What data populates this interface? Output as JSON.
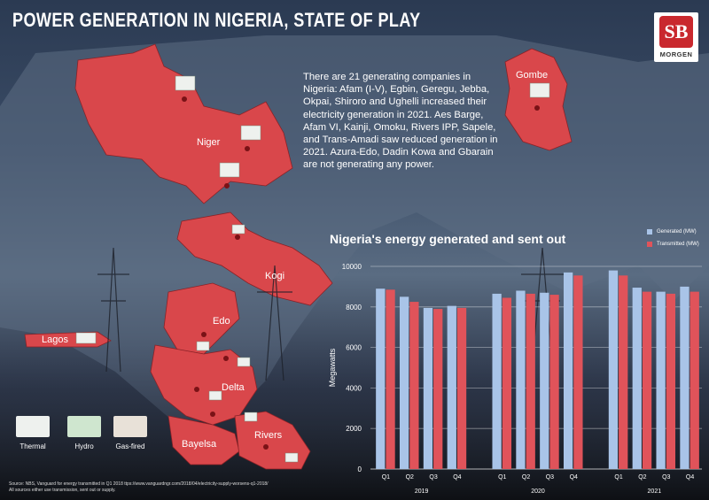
{
  "title": "POWER GENERATION IN NIGERIA, STATE OF PLAY",
  "logo": {
    "mark": "SB",
    "name": "MORGEN"
  },
  "intro_text": "There are 21 generating companies in Nigeria: Afam (I-V), Egbin, Geregu, Jebba, Okpai, Shiroro and Ughelli increased their electricity generation in 2021. Aes Barge, Afam VI, Kainji, Omoku, Rivers IPP, Sapele, and Trans-Amadi saw reduced generation in 2021. Azura-Edo, Dadin Kowa and Gbarain are not generating any power.",
  "map_labels": {
    "niger": "Niger",
    "kogi": "Kogi",
    "edo": "Edo",
    "lagos": "Lagos",
    "delta": "Delta",
    "bayelsa": "Bayelsa",
    "rivers": "Rivers",
    "gombe": "Gombe"
  },
  "map_key": {
    "thermal": "Thermal",
    "hydro": "Hydro",
    "gas": "Gas-fired"
  },
  "source": {
    "line1": "Source: NBS, Vanguard for energy transmitted in Q1 2018 ttps://www.vanguardngr.com/2018/04/electricity-supply-worsens-q1-2018/",
    "line2": "All sources either use transmission, sent out or supply."
  },
  "colors": {
    "map_red": "#d9474b",
    "generated": "#a9c4e8",
    "transmitted": "#e0535a"
  },
  "chart_data": {
    "type": "bar",
    "title": "Nigeria's energy generated and sent out",
    "ylabel": "Megawatts",
    "ylim": [
      0,
      10000
    ],
    "yticks": [
      0,
      2000,
      4000,
      6000,
      8000,
      10000
    ],
    "legend_position": "top-right",
    "groups": [
      {
        "year": "2019",
        "quarters": [
          "Q1",
          "Q2",
          "Q3",
          "Q4"
        ]
      },
      {
        "year": "2020",
        "quarters": [
          "Q1",
          "Q2",
          "Q3",
          "Q4"
        ]
      },
      {
        "year": "2021",
        "quarters": [
          "Q1",
          "Q2",
          "Q3",
          "Q4"
        ]
      }
    ],
    "series": [
      {
        "name": "Generated (MW)",
        "values": [
          8900,
          8500,
          7950,
          8050,
          8650,
          8800,
          8700,
          9700,
          9800,
          8950,
          8750,
          9000
        ]
      },
      {
        "name": "Transmitted (MW)",
        "values": [
          8850,
          8250,
          7900,
          7950,
          8450,
          8650,
          8600,
          9550,
          9550,
          8750,
          8650,
          8750
        ]
      }
    ]
  }
}
